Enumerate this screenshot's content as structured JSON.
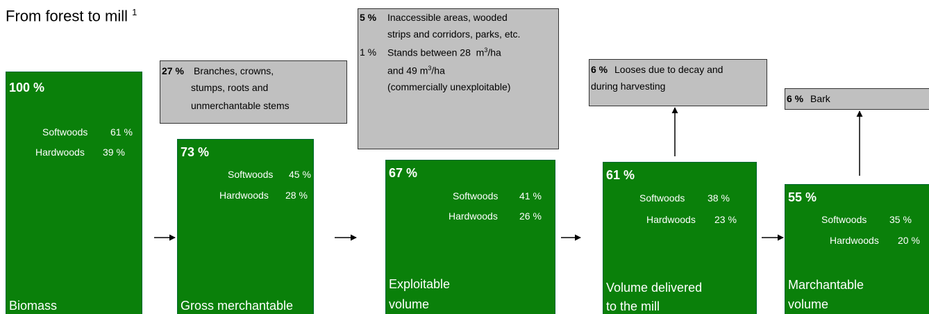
{
  "title": {
    "text": "From forest to mill",
    "footnote": "1"
  },
  "stages": [
    {
      "percent": "100 %",
      "softwoods_label": "Softwoods",
      "softwoods": "61 %",
      "hardwoods_label": "Hardwoods",
      "hardwoods": "39 %",
      "name": [
        "Biomass"
      ]
    },
    {
      "percent": "73 %",
      "softwoods_label": "Softwoods",
      "softwoods": "45 %",
      "hardwoods_label": "Hardwoods",
      "hardwoods": "28 %",
      "name": [
        "Gross merchantable"
      ]
    },
    {
      "percent": "67 %",
      "softwoods_label": "Softwoods",
      "softwoods": "41 %",
      "hardwoods_label": "Hardwoods",
      "hardwoods": "26 %",
      "name": [
        "Exploitable",
        "volume"
      ]
    },
    {
      "percent": "61 %",
      "softwoods_label": "Softwoods",
      "softwoods": "38 %",
      "hardwoods_label": "Hardwoods",
      "hardwoods": "23 %",
      "name": [
        "Volume delivered",
        "to the mill"
      ]
    },
    {
      "percent": "55 %",
      "softwoods_label": "Softwoods",
      "softwoods": "35 %",
      "hardwoods_label": "Hardwoods",
      "hardwoods": "20 %",
      "name": [
        "Marchantable",
        "volume"
      ]
    }
  ],
  "losses": [
    {
      "percent": "27 %",
      "lines": [
        "Branches, crowns,",
        "stumps, roots and",
        "unmerchantable stems"
      ]
    },
    {
      "items": [
        {
          "percent": "5 %",
          "lines": [
            "Inaccessible areas, wooded",
            "strips and corridors, parks, etc."
          ]
        },
        {
          "percent": "1 %",
          "lines": [
            [
              "Stands between 28  m",
              "3",
              "/ha"
            ],
            [
              "and 49 m",
              "3",
              "/ha"
            ],
            "(commercially unexploitable)"
          ]
        }
      ]
    },
    {
      "percent": "6 %",
      "lines": [
        "Looses due to decay and",
        "during harvesting"
      ]
    },
    {
      "percent": "6 %",
      "lines": [
        "Bark"
      ]
    }
  ]
}
